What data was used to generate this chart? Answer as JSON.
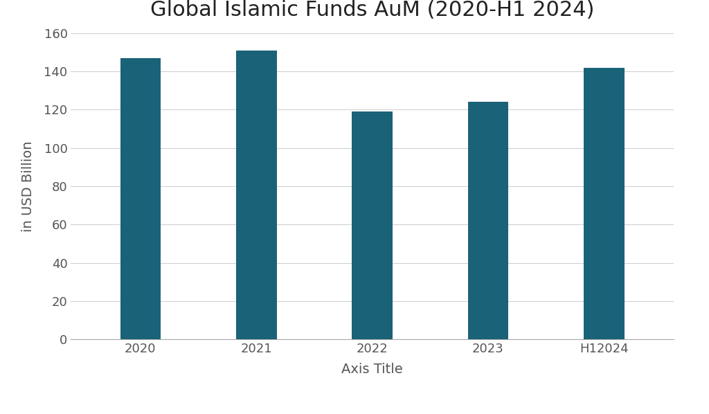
{
  "title": "Global Islamic Funds AuM (2020-H1 2024)",
  "categories": [
    "2020",
    "2021",
    "2022",
    "2023",
    "H12024"
  ],
  "values": [
    147,
    151,
    119,
    124,
    142
  ],
  "bar_color": "#1a6278",
  "xlabel": "Axis Title",
  "ylabel": "in USD Billion",
  "ylim": [
    0,
    160
  ],
  "yticks": [
    0,
    20,
    40,
    60,
    80,
    100,
    120,
    140,
    160
  ],
  "legend_label": "Global Islamic Funds AuM (2020-H1 2024)",
  "background_color": "#ffffff",
  "title_fontsize": 22,
  "axis_label_fontsize": 14,
  "tick_fontsize": 13,
  "legend_fontsize": 13,
  "bar_width": 0.35
}
